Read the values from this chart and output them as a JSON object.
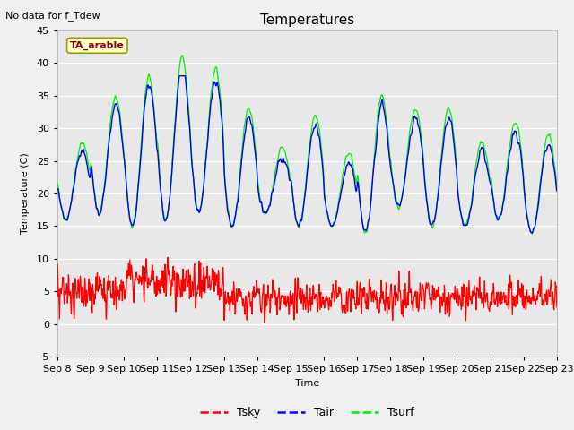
{
  "title": "Temperatures",
  "ylabel": "Temperature (C)",
  "xlabel": "Time",
  "note": "No data for f_Tdew",
  "legend_label": "TA_arable",
  "ylim": [
    -5,
    45
  ],
  "xlim": [
    0,
    360
  ],
  "bg_color": "#e8e8e8",
  "fig_color": "#f0f0f0",
  "tsky_color": "#ff0000",
  "tair_color": "#0000ff",
  "tsurf_color": "#00ee00",
  "xtick_labels": [
    "Sep 8",
    "Sep 9",
    "Sep 10",
    "Sep 11",
    "Sep 12",
    "Sep 13",
    "Sep 14",
    "Sep 15",
    "Sep 16",
    "Sep 17",
    "Sep 18",
    "Sep 19",
    "Sep 20",
    "Sep 21",
    "Sep 22",
    "Sep 23"
  ],
  "xtick_positions": [
    0,
    24,
    48,
    72,
    96,
    120,
    144,
    168,
    192,
    216,
    240,
    264,
    288,
    312,
    336,
    360
  ],
  "ytick_positions": [
    -5,
    0,
    5,
    10,
    15,
    20,
    25,
    30,
    35,
    40,
    45
  ]
}
